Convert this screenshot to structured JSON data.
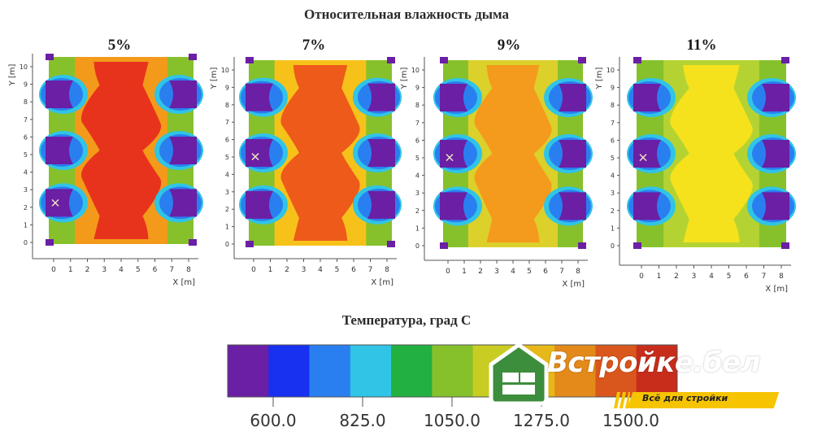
{
  "chart_data": {
    "type": "heatmap",
    "title": "Относительная влажность дыма",
    "panels": [
      {
        "label": "5%",
        "center_color": "#e8331c",
        "side_color": "#f39a1a"
      },
      {
        "label": "7%",
        "center_color": "#ee5a1a",
        "side_color": "#f6c21a"
      },
      {
        "label": "9%",
        "center_color": "#f49a1c",
        "side_color": "#dcd02a"
      },
      {
        "label": "11%",
        "center_color": "#f5e21c",
        "side_color": "#b4d332"
      }
    ],
    "x_axis": {
      "label": "X [m]",
      "ticks": [
        "0",
        "1",
        "2",
        "3",
        "4",
        "5",
        "6",
        "7",
        "8"
      ]
    },
    "y_axis": {
      "label": "Y [m]",
      "ticks": [
        "0",
        "1",
        "2",
        "3",
        "4",
        "5",
        "6",
        "7",
        "8",
        "9",
        "10"
      ]
    },
    "colorbar": {
      "title": "Температура, град С",
      "colors": [
        "#6a1fa4",
        "#1830f0",
        "#2a7ff0",
        "#30c4e6",
        "#22b040",
        "#86c12c",
        "#c9cc22",
        "#e7b81a",
        "#e48a1a",
        "#d9561c",
        "#c82d1c"
      ],
      "tick_labels": [
        "600.0",
        "825.0",
        "1050.0",
        "1275.0",
        "1500.0"
      ]
    }
  },
  "logo": {
    "name": "Встройке.бел",
    "tagline": "Всё для стройки"
  }
}
